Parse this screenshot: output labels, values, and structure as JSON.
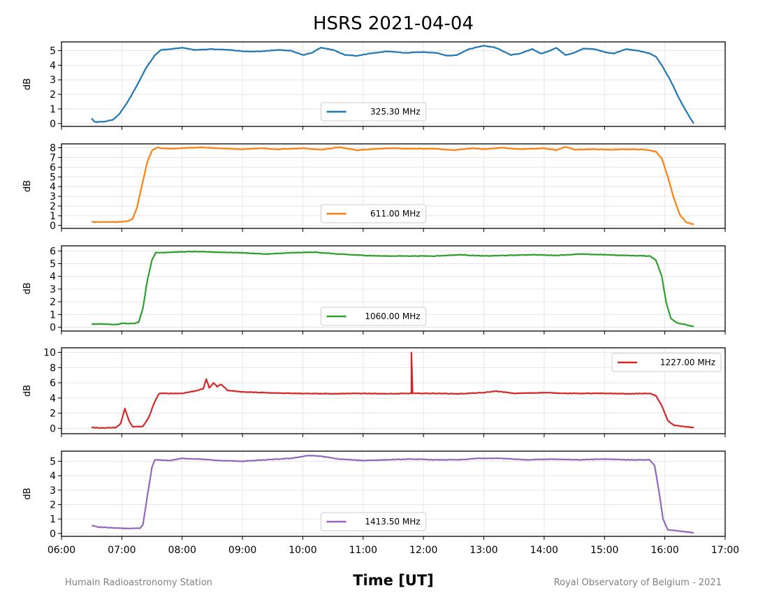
{
  "chart_data": {
    "type": "line",
    "title": "HSRS 2021-04-04",
    "xlabel": "Time [UT]",
    "ylabel": "dB",
    "x_range_hours": [
      6,
      17
    ],
    "x_ticks": [
      "06:00",
      "07:00",
      "08:00",
      "09:00",
      "10:00",
      "11:00",
      "12:00",
      "13:00",
      "14:00",
      "15:00",
      "16:00",
      "17:00"
    ],
    "grid": true,
    "credit_left": "Humain Radioastronomy Station",
    "credit_right": "Royal Observatory of Belgium - 2021",
    "panels": [
      {
        "name": "325.30 MHz",
        "color": "#1f77b4",
        "ylim": [
          -0.2,
          5.6
        ],
        "yticks": [
          0,
          1,
          2,
          3,
          4,
          5
        ],
        "legend": "bottom-center",
        "points": [
          [
            6.5,
            0.35
          ],
          [
            6.55,
            0.1
          ],
          [
            6.7,
            0.12
          ],
          [
            6.85,
            0.25
          ],
          [
            6.95,
            0.6
          ],
          [
            7.1,
            1.5
          ],
          [
            7.25,
            2.6
          ],
          [
            7.4,
            3.8
          ],
          [
            7.55,
            4.7
          ],
          [
            7.65,
            5.05
          ],
          [
            7.8,
            5.1
          ],
          [
            8.0,
            5.2
          ],
          [
            8.2,
            5.05
          ],
          [
            8.5,
            5.1
          ],
          [
            8.8,
            5.05
          ],
          [
            9.0,
            4.95
          ],
          [
            9.3,
            4.95
          ],
          [
            9.6,
            5.05
          ],
          [
            9.8,
            5.0
          ],
          [
            10.0,
            4.7
          ],
          [
            10.15,
            4.85
          ],
          [
            10.3,
            5.2
          ],
          [
            10.5,
            5.05
          ],
          [
            10.7,
            4.7
          ],
          [
            10.9,
            4.65
          ],
          [
            11.1,
            4.8
          ],
          [
            11.4,
            4.95
          ],
          [
            11.7,
            4.85
          ],
          [
            12.0,
            4.9
          ],
          [
            12.2,
            4.85
          ],
          [
            12.4,
            4.65
          ],
          [
            12.55,
            4.7
          ],
          [
            12.75,
            5.1
          ],
          [
            13.0,
            5.35
          ],
          [
            13.2,
            5.2
          ],
          [
            13.45,
            4.7
          ],
          [
            13.6,
            4.8
          ],
          [
            13.8,
            5.1
          ],
          [
            13.95,
            4.8
          ],
          [
            14.1,
            5.0
          ],
          [
            14.2,
            5.2
          ],
          [
            14.35,
            4.7
          ],
          [
            14.5,
            4.85
          ],
          [
            14.65,
            5.15
          ],
          [
            14.85,
            5.1
          ],
          [
            15.0,
            4.9
          ],
          [
            15.15,
            4.8
          ],
          [
            15.35,
            5.1
          ],
          [
            15.55,
            5.0
          ],
          [
            15.75,
            4.8
          ],
          [
            15.85,
            4.6
          ],
          [
            15.95,
            4.0
          ],
          [
            16.1,
            2.9
          ],
          [
            16.25,
            1.6
          ],
          [
            16.4,
            0.5
          ],
          [
            16.48,
            0.0
          ]
        ]
      },
      {
        "name": "611.00 MHz",
        "color": "#ff7f0e",
        "ylim": [
          -0.3,
          8.4
        ],
        "yticks": [
          0,
          1,
          2,
          3,
          4,
          5,
          6,
          7,
          8
        ],
        "legend": "bottom-center",
        "points": [
          [
            6.5,
            0.35
          ],
          [
            6.7,
            0.35
          ],
          [
            6.9,
            0.35
          ],
          [
            7.0,
            0.38
          ],
          [
            7.1,
            0.45
          ],
          [
            7.18,
            0.7
          ],
          [
            7.25,
            1.8
          ],
          [
            7.33,
            4.0
          ],
          [
            7.42,
            6.5
          ],
          [
            7.5,
            7.7
          ],
          [
            7.58,
            8.0
          ],
          [
            7.8,
            7.9
          ],
          [
            8.0,
            7.95
          ],
          [
            8.3,
            8.05
          ],
          [
            8.6,
            7.95
          ],
          [
            9.0,
            7.85
          ],
          [
            9.3,
            7.95
          ],
          [
            9.6,
            7.85
          ],
          [
            10.0,
            7.95
          ],
          [
            10.3,
            7.8
          ],
          [
            10.6,
            8.05
          ],
          [
            10.9,
            7.75
          ],
          [
            11.1,
            7.85
          ],
          [
            11.4,
            7.95
          ],
          [
            11.8,
            7.9
          ],
          [
            12.2,
            7.9
          ],
          [
            12.5,
            7.75
          ],
          [
            12.8,
            7.95
          ],
          [
            13.0,
            7.85
          ],
          [
            13.3,
            8.0
          ],
          [
            13.6,
            7.85
          ],
          [
            14.0,
            7.95
          ],
          [
            14.2,
            7.75
          ],
          [
            14.35,
            8.1
          ],
          [
            14.5,
            7.8
          ],
          [
            14.8,
            7.85
          ],
          [
            15.1,
            7.8
          ],
          [
            15.4,
            7.85
          ],
          [
            15.7,
            7.8
          ],
          [
            15.85,
            7.6
          ],
          [
            15.95,
            6.9
          ],
          [
            16.05,
            5.0
          ],
          [
            16.15,
            2.8
          ],
          [
            16.25,
            1.1
          ],
          [
            16.35,
            0.35
          ],
          [
            16.48,
            0.1
          ]
        ]
      },
      {
        "name": "1060.00 MHz",
        "color": "#2ca02c",
        "ylim": [
          -0.3,
          6.4
        ],
        "yticks": [
          0,
          1,
          2,
          3,
          4,
          5,
          6
        ],
        "legend": "bottom-center",
        "points": [
          [
            6.5,
            0.25
          ],
          [
            6.7,
            0.25
          ],
          [
            6.9,
            0.2
          ],
          [
            7.0,
            0.3
          ],
          [
            7.2,
            0.3
          ],
          [
            7.28,
            0.4
          ],
          [
            7.35,
            1.5
          ],
          [
            7.42,
            3.6
          ],
          [
            7.5,
            5.3
          ],
          [
            7.56,
            5.85
          ],
          [
            7.8,
            5.9
          ],
          [
            8.2,
            5.95
          ],
          [
            8.6,
            5.9
          ],
          [
            9.0,
            5.85
          ],
          [
            9.4,
            5.75
          ],
          [
            9.8,
            5.85
          ],
          [
            10.2,
            5.9
          ],
          [
            10.6,
            5.75
          ],
          [
            11.0,
            5.65
          ],
          [
            11.3,
            5.6
          ],
          [
            11.7,
            5.6
          ],
          [
            12.2,
            5.6
          ],
          [
            12.6,
            5.7
          ],
          [
            13.0,
            5.6
          ],
          [
            13.4,
            5.65
          ],
          [
            13.8,
            5.7
          ],
          [
            14.2,
            5.65
          ],
          [
            14.6,
            5.75
          ],
          [
            15.0,
            5.7
          ],
          [
            15.3,
            5.65
          ],
          [
            15.75,
            5.6
          ],
          [
            15.85,
            5.3
          ],
          [
            15.95,
            4.0
          ],
          [
            16.02,
            2.0
          ],
          [
            16.1,
            0.7
          ],
          [
            16.2,
            0.35
          ],
          [
            16.48,
            0.05
          ]
        ]
      },
      {
        "name": "1227.00 MHz",
        "color": "#d62728",
        "ylim": [
          -0.7,
          10.6
        ],
        "yticks": [
          0,
          2,
          4,
          6,
          8,
          10
        ],
        "legend": "top-right",
        "points": [
          [
            6.5,
            0.1
          ],
          [
            6.7,
            0.05
          ],
          [
            6.9,
            0.1
          ],
          [
            6.98,
            0.6
          ],
          [
            7.05,
            2.6
          ],
          [
            7.12,
            1.0
          ],
          [
            7.18,
            0.2
          ],
          [
            7.35,
            0.25
          ],
          [
            7.45,
            1.5
          ],
          [
            7.55,
            3.6
          ],
          [
            7.62,
            4.6
          ],
          [
            8.0,
            4.6
          ],
          [
            8.2,
            4.9
          ],
          [
            8.35,
            5.2
          ],
          [
            8.4,
            6.5
          ],
          [
            8.45,
            5.3
          ],
          [
            8.52,
            6.0
          ],
          [
            8.58,
            5.5
          ],
          [
            8.65,
            5.8
          ],
          [
            8.75,
            5.0
          ],
          [
            9.0,
            4.8
          ],
          [
            9.5,
            4.65
          ],
          [
            10.0,
            4.6
          ],
          [
            10.5,
            4.55
          ],
          [
            11.0,
            4.6
          ],
          [
            11.5,
            4.55
          ],
          [
            11.8,
            4.6
          ],
          [
            11.8,
            10.0
          ],
          [
            11.82,
            4.6
          ],
          [
            12.2,
            4.6
          ],
          [
            12.6,
            4.55
          ],
          [
            13.0,
            4.7
          ],
          [
            13.2,
            4.9
          ],
          [
            13.5,
            4.6
          ],
          [
            14.0,
            4.7
          ],
          [
            14.4,
            4.6
          ],
          [
            15.0,
            4.6
          ],
          [
            15.4,
            4.55
          ],
          [
            15.75,
            4.6
          ],
          [
            15.85,
            4.3
          ],
          [
            15.95,
            3.0
          ],
          [
            16.05,
            1.0
          ],
          [
            16.15,
            0.4
          ],
          [
            16.48,
            0.1
          ]
        ]
      },
      {
        "name": "1413.50 MHz",
        "color": "#9467bd",
        "ylim": [
          -0.2,
          5.7
        ],
        "yticks": [
          0,
          1,
          2,
          3,
          4,
          5
        ],
        "legend": "bottom-center",
        "points": [
          [
            6.5,
            0.55
          ],
          [
            6.6,
            0.45
          ],
          [
            6.8,
            0.4
          ],
          [
            7.0,
            0.35
          ],
          [
            7.3,
            0.35
          ],
          [
            7.35,
            0.6
          ],
          [
            7.42,
            2.5
          ],
          [
            7.5,
            4.6
          ],
          [
            7.55,
            5.1
          ],
          [
            7.8,
            5.05
          ],
          [
            8.0,
            5.2
          ],
          [
            8.3,
            5.15
          ],
          [
            8.6,
            5.05
          ],
          [
            9.0,
            5.0
          ],
          [
            9.4,
            5.1
          ],
          [
            9.8,
            5.2
          ],
          [
            10.1,
            5.4
          ],
          [
            10.3,
            5.35
          ],
          [
            10.6,
            5.15
          ],
          [
            11.0,
            5.05
          ],
          [
            11.4,
            5.1
          ],
          [
            11.8,
            5.15
          ],
          [
            12.2,
            5.1
          ],
          [
            12.6,
            5.1
          ],
          [
            12.9,
            5.2
          ],
          [
            13.3,
            5.2
          ],
          [
            13.7,
            5.1
          ],
          [
            14.1,
            5.15
          ],
          [
            14.6,
            5.1
          ],
          [
            15.0,
            5.15
          ],
          [
            15.4,
            5.1
          ],
          [
            15.75,
            5.1
          ],
          [
            15.83,
            4.7
          ],
          [
            15.9,
            3.0
          ],
          [
            15.97,
            1.0
          ],
          [
            16.05,
            0.25
          ],
          [
            16.48,
            0.05
          ]
        ]
      }
    ]
  }
}
